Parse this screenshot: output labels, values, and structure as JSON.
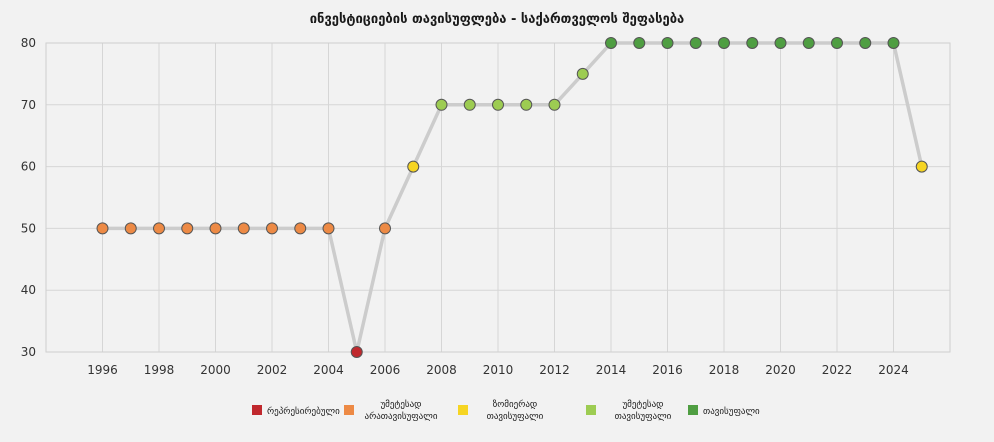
{
  "chart_data": {
    "type": "line",
    "title": "ინვესტიციების თავისუფლება - საქართველოს შეფასება",
    "xlabel": "",
    "ylabel": "",
    "xlim": [
      1994,
      2026
    ],
    "ylim": [
      30,
      80
    ],
    "x_ticks": [
      "1996",
      "1998",
      "2000",
      "2002",
      "2004",
      "2006",
      "2008",
      "2010",
      "2012",
      "2014",
      "2016",
      "2018",
      "2020",
      "2022",
      "2024"
    ],
    "y_ticks": [
      "30",
      "40",
      "50",
      "60",
      "70",
      "80"
    ],
    "grid": true,
    "line_color": "#cccccc",
    "series": [
      {
        "points": [
          {
            "x": 1996,
            "y": 50,
            "cat": 1
          },
          {
            "x": 1997,
            "y": 50,
            "cat": 1
          },
          {
            "x": 1998,
            "y": 50,
            "cat": 1
          },
          {
            "x": 1999,
            "y": 50,
            "cat": 1
          },
          {
            "x": 2000,
            "y": 50,
            "cat": 1
          },
          {
            "x": 2001,
            "y": 50,
            "cat": 1
          },
          {
            "x": 2002,
            "y": 50,
            "cat": 1
          },
          {
            "x": 2003,
            "y": 50,
            "cat": 1
          },
          {
            "x": 2004,
            "y": 50,
            "cat": 1
          },
          {
            "x": 2005,
            "y": 30,
            "cat": 0
          },
          {
            "x": 2006,
            "y": 50,
            "cat": 1
          },
          {
            "x": 2007,
            "y": 60,
            "cat": 2
          },
          {
            "x": 2008,
            "y": 70,
            "cat": 3
          },
          {
            "x": 2009,
            "y": 70,
            "cat": 3
          },
          {
            "x": 2010,
            "y": 70,
            "cat": 3
          },
          {
            "x": 2011,
            "y": 70,
            "cat": 3
          },
          {
            "x": 2012,
            "y": 70,
            "cat": 3
          },
          {
            "x": 2013,
            "y": 75,
            "cat": 3
          },
          {
            "x": 2014,
            "y": 80,
            "cat": 4
          },
          {
            "x": 2015,
            "y": 80,
            "cat": 4
          },
          {
            "x": 2016,
            "y": 80,
            "cat": 4
          },
          {
            "x": 2017,
            "y": 80,
            "cat": 4
          },
          {
            "x": 2018,
            "y": 80,
            "cat": 4
          },
          {
            "x": 2019,
            "y": 80,
            "cat": 4
          },
          {
            "x": 2020,
            "y": 80,
            "cat": 4
          },
          {
            "x": 2021,
            "y": 80,
            "cat": 4
          },
          {
            "x": 2022,
            "y": 80,
            "cat": 4
          },
          {
            "x": 2023,
            "y": 80,
            "cat": 4
          },
          {
            "x": 2024,
            "y": 80,
            "cat": 4
          },
          {
            "x": 2025,
            "y": 60,
            "cat": 2
          }
        ]
      }
    ],
    "legend": {
      "placement": "bottom",
      "items": [
        {
          "lines": [
            "რეპრესირებული"
          ],
          "color": "#c0282d"
        },
        {
          "lines": [
            "უმეტესად",
            "არათავისუფალი"
          ],
          "color": "#ed8a45"
        },
        {
          "lines": [
            "ზომიერად",
            "თავისუფალი"
          ],
          "color": "#f6d523"
        },
        {
          "lines": [
            "უმეტესად",
            "თავისუფალი"
          ],
          "color": "#9dcc52"
        },
        {
          "lines": [
            "თავისუფალი"
          ],
          "color": "#4f9e42"
        }
      ]
    }
  }
}
